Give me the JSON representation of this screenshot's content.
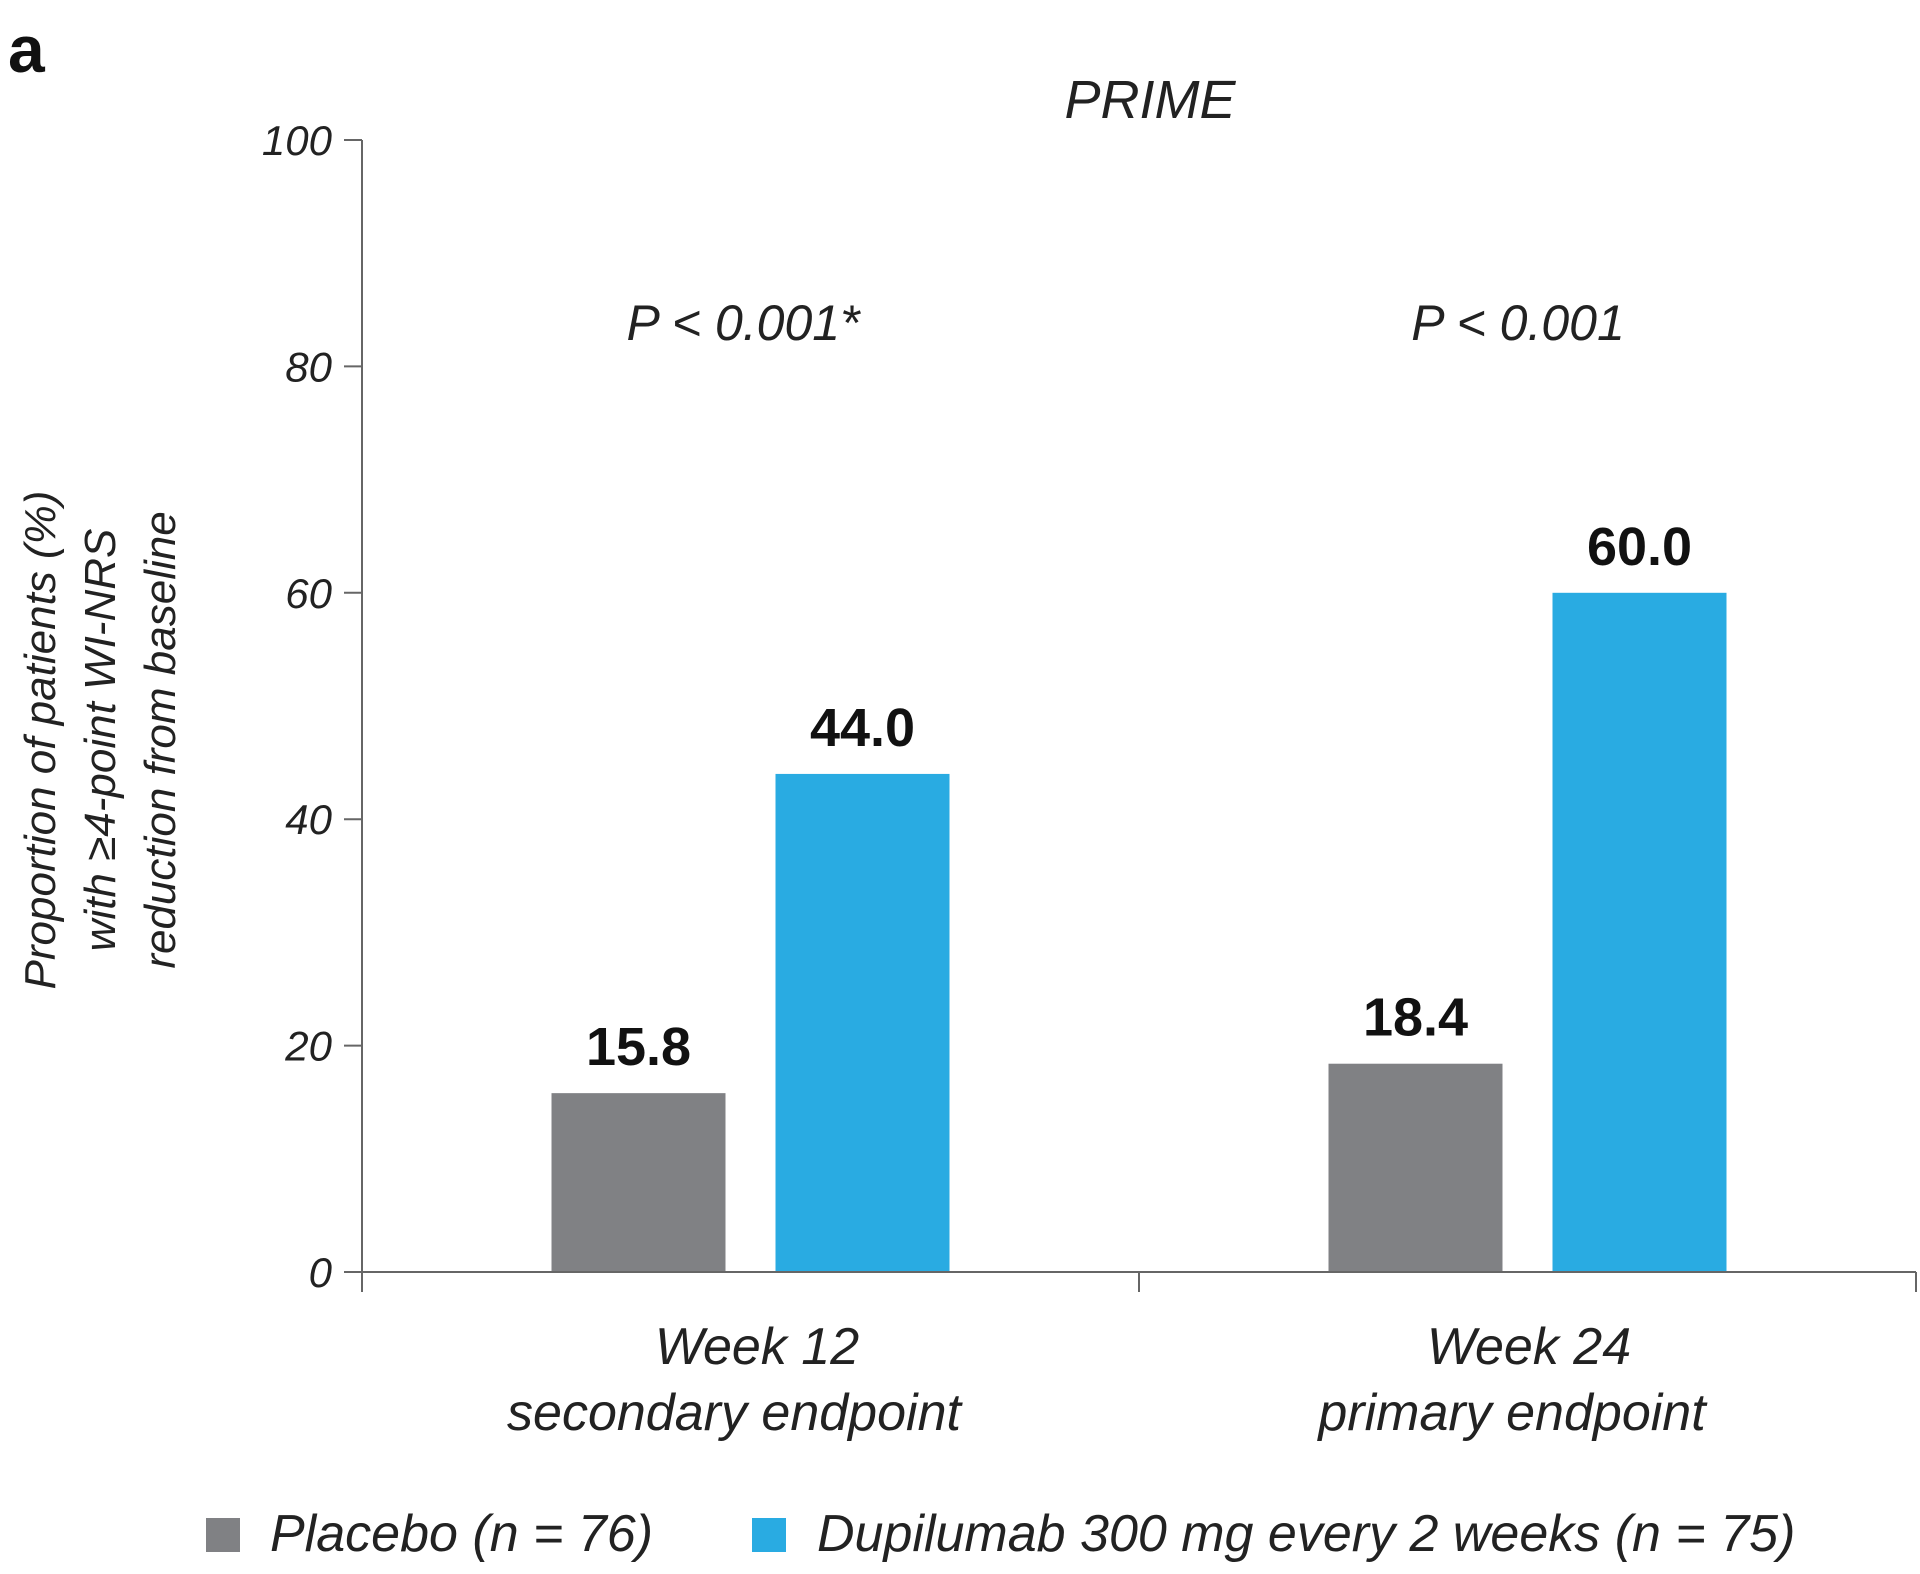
{
  "panel_label": "a",
  "chart_data": {
    "type": "bar",
    "title": "PRIME",
    "ylabel_lines": [
      "Proportion of patients (%)",
      "with ≥4-point WI-NRS",
      "reduction from baseline"
    ],
    "ylim": [
      0,
      100
    ],
    "yticks": [
      0,
      20,
      40,
      60,
      80,
      100
    ],
    "grid": false,
    "categories": [
      {
        "line1": "Week 12",
        "line2": "secondary endpoint"
      },
      {
        "line1": "Week 24",
        "line2": "primary endpoint"
      }
    ],
    "pvalues": [
      "P < 0.001*",
      "P < 0.001"
    ],
    "series": [
      {
        "name": "Placebo",
        "n_label": "(n = 76)",
        "color": "#808184",
        "values": [
          15.8,
          18.4
        ],
        "labels": [
          "15.8",
          "18.4"
        ]
      },
      {
        "name": "Dupilumab 300 mg every 2 weeks",
        "n_label": "(n = 75)",
        "color": "#29abe2",
        "values": [
          44.0,
          60.0
        ],
        "labels": [
          "44.0",
          "60.0"
        ]
      }
    ],
    "legend_position": "bottom"
  }
}
